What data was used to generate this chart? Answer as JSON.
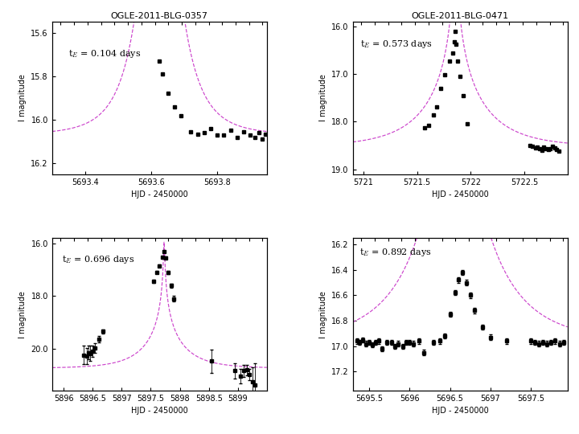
{
  "panels": [
    {
      "title": "OGLE-2011-BLG-0357",
      "te_label": "t$_E$ = 0.104 days",
      "t0": 5693.625,
      "te": 0.104,
      "u0": 0.008,
      "baseline_mag": 16.07,
      "xlim": [
        5693.3,
        5693.95
      ],
      "ylim": [
        16.25,
        15.55
      ],
      "xticks": [
        5693.4,
        5693.6,
        5693.8
      ],
      "xtick_labels": [
        "5693.4",
        "5693.6",
        "5693.8"
      ],
      "yticks": [
        15.6,
        15.8,
        16.0,
        16.2
      ],
      "xlabel": "HJD - 2450000",
      "ylabel": "I magnitude",
      "data_x": [
        5693.625,
        5693.635,
        5693.65,
        5693.67,
        5693.69,
        5693.72,
        5693.74,
        5693.76,
        5693.78,
        5693.8,
        5693.82,
        5693.84,
        5693.86,
        5693.88,
        5693.9,
        5693.915,
        5693.925,
        5693.935,
        5693.945
      ],
      "data_y": [
        15.73,
        15.79,
        15.88,
        15.94,
        15.98,
        16.055,
        16.065,
        16.06,
        16.04,
        16.07,
        16.07,
        16.05,
        16.08,
        16.055,
        16.07,
        16.08,
        16.06,
        16.09,
        16.065
      ],
      "data_yerr": [],
      "te_ann_x": 5693.35,
      "te_ann_y": 15.67
    },
    {
      "title": "OGLE-2011-BLG-0471",
      "te_label": "t$_E$ = 0.573 days",
      "t0": 5721.855,
      "te": 0.573,
      "u0": 0.015,
      "baseline_mag": 18.53,
      "xlim": [
        5720.9,
        5722.9
      ],
      "ylim": [
        19.1,
        15.9
      ],
      "xticks": [
        5721.0,
        5721.5,
        5722.0,
        5722.5
      ],
      "xtick_labels": [
        "5721",
        "5721.5",
        "5722",
        "5722.5"
      ],
      "yticks": [
        16.0,
        17.0,
        18.0,
        19.0
      ],
      "xlabel": "HJD - 2450000",
      "ylabel": "I magnitude",
      "data_x": [
        5721.57,
        5721.61,
        5721.65,
        5721.68,
        5721.72,
        5721.76,
        5721.8,
        5721.83,
        5721.845,
        5721.855,
        5721.865,
        5721.875,
        5721.9,
        5721.93,
        5721.97,
        5722.55,
        5722.57,
        5722.6,
        5722.62,
        5722.64,
        5722.66,
        5722.68,
        5722.7,
        5722.72,
        5722.74,
        5722.76,
        5722.78,
        5722.8,
        5722.82
      ],
      "data_y": [
        18.12,
        18.08,
        17.85,
        17.68,
        17.3,
        17.02,
        16.72,
        16.55,
        16.32,
        16.1,
        16.38,
        16.72,
        17.05,
        17.45,
        18.05,
        18.5,
        18.52,
        18.55,
        18.53,
        18.57,
        18.6,
        18.54,
        18.56,
        18.59,
        18.57,
        18.52,
        18.55,
        18.59,
        18.61
      ],
      "data_yerr": [],
      "te_ann_x": 5720.97,
      "te_ann_y": 16.25
    },
    {
      "title": "",
      "te_label": "t$_E$ = 0.696 days",
      "t0": 5897.73,
      "te": 0.696,
      "u0": 0.012,
      "baseline_mag": 20.75,
      "xlim": [
        5895.8,
        5899.5
      ],
      "ylim": [
        21.6,
        15.8
      ],
      "xticks": [
        5896.0,
        5896.5,
        5897.0,
        5897.5,
        5898.0,
        5898.5,
        5899.0
      ],
      "xtick_labels": [
        "5896",
        "5896.5",
        "5897",
        "5897.5",
        "5898",
        "5898.5",
        "5899"
      ],
      "yticks": [
        16.0,
        18.0,
        20.0
      ],
      "xlabel": "HJD - 2450000",
      "ylabel": "I magnitude",
      "data_x": [
        5896.35,
        5896.4,
        5896.42,
        5896.46,
        5896.5,
        5896.54,
        5896.6,
        5896.68,
        5897.55,
        5897.6,
        5897.65,
        5897.7,
        5897.73,
        5897.76,
        5897.8,
        5897.85,
        5897.9,
        5898.55,
        5898.95,
        5899.05,
        5899.1,
        5899.15,
        5899.2,
        5899.25,
        5899.3
      ],
      "data_y": [
        20.25,
        20.28,
        20.15,
        20.18,
        20.1,
        19.98,
        19.65,
        19.35,
        17.45,
        17.1,
        16.85,
        16.52,
        16.32,
        16.55,
        17.1,
        17.6,
        18.1,
        20.48,
        20.85,
        21.05,
        20.85,
        20.82,
        20.98,
        21.25,
        21.4
      ],
      "data_yerr": [
        0.35,
        0.3,
        0.25,
        0.28,
        0.22,
        0.18,
        0.12,
        0.08,
        0.06,
        0.05,
        0.04,
        0.04,
        0.03,
        0.05,
        0.06,
        0.08,
        0.1,
        0.45,
        0.3,
        0.28,
        0.22,
        0.2,
        0.22,
        0.55,
        0.85
      ],
      "te_ann_x": 5895.97,
      "te_ann_y": 16.4
    },
    {
      "title": "",
      "te_label": "t$_E$ = 0.892 days",
      "t0": 5696.55,
      "te": 0.892,
      "u0": 0.03,
      "baseline_mag": 16.97,
      "xlim": [
        5695.3,
        5697.95
      ],
      "ylim": [
        17.35,
        16.15
      ],
      "xticks": [
        5695.5,
        5696.0,
        5696.5,
        5697.0,
        5697.5
      ],
      "xtick_labels": [
        "5695.5",
        "5696",
        "5696.5",
        "5697",
        "5697.5"
      ],
      "yticks": [
        16.2,
        16.4,
        16.6,
        16.8,
        17.0,
        17.2
      ],
      "xlabel": "HJD - 2450000",
      "ylabel": "I magnitude",
      "data_x": [
        5695.35,
        5695.38,
        5695.42,
        5695.46,
        5695.5,
        5695.54,
        5695.58,
        5695.62,
        5695.66,
        5695.72,
        5695.78,
        5695.82,
        5695.86,
        5695.92,
        5695.96,
        5696.0,
        5696.05,
        5696.12,
        5696.18,
        5696.3,
        5696.38,
        5696.44,
        5696.5,
        5696.56,
        5696.6,
        5696.65,
        5696.7,
        5696.75,
        5696.8,
        5696.9,
        5697.0,
        5697.2,
        5697.5,
        5697.55,
        5697.6,
        5697.65,
        5697.7,
        5697.75,
        5697.8,
        5697.85,
        5697.9
      ],
      "data_y": [
        16.96,
        16.97,
        16.95,
        16.98,
        16.97,
        16.99,
        16.97,
        16.96,
        17.02,
        16.97,
        16.97,
        17.0,
        16.98,
        17.0,
        16.97,
        16.97,
        16.98,
        16.96,
        17.05,
        16.97,
        16.96,
        16.92,
        16.75,
        16.58,
        16.48,
        16.42,
        16.5,
        16.6,
        16.72,
        16.85,
        16.93,
        16.96,
        16.96,
        16.97,
        16.98,
        16.97,
        16.98,
        16.97,
        16.96,
        16.98,
        16.97
      ],
      "data_yerr": [
        0.02,
        0.02,
        0.02,
        0.02,
        0.02,
        0.02,
        0.02,
        0.02,
        0.02,
        0.02,
        0.02,
        0.02,
        0.02,
        0.02,
        0.02,
        0.02,
        0.02,
        0.02,
        0.02,
        0.02,
        0.02,
        0.02,
        0.02,
        0.02,
        0.02,
        0.02,
        0.02,
        0.02,
        0.02,
        0.02,
        0.02,
        0.02,
        0.02,
        0.02,
        0.02,
        0.02,
        0.02,
        0.02,
        0.02,
        0.02,
        0.02
      ],
      "te_ann_x": 5695.38,
      "te_ann_y": 16.22
    }
  ],
  "curve_color": "#cc44cc",
  "data_color": "black",
  "bg_color": "white",
  "fontsize_title": 8,
  "fontsize_label": 7,
  "fontsize_tick": 7,
  "fontsize_annot": 8
}
